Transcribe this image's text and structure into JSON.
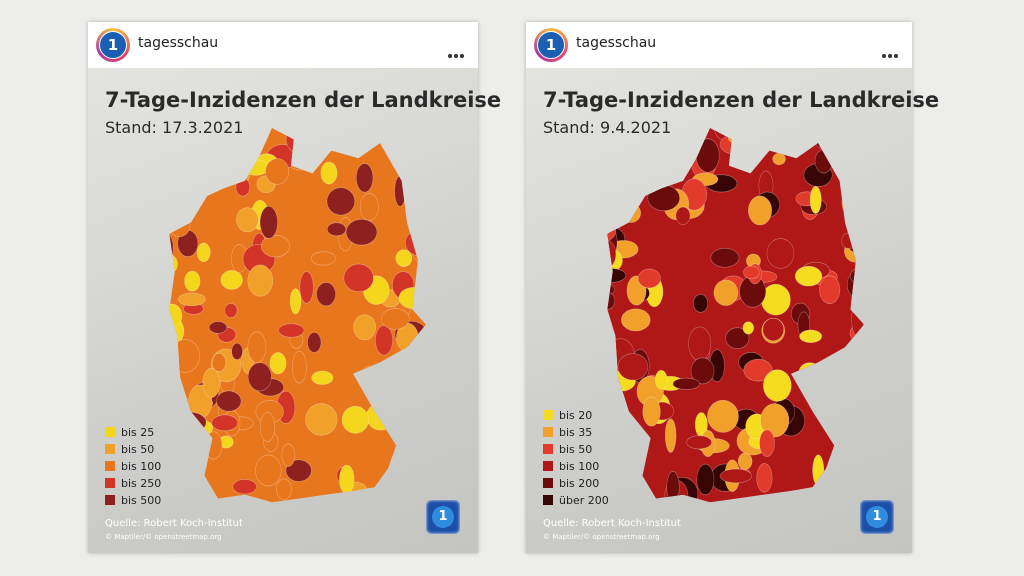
{
  "posts": [
    {
      "account": "tagesschau",
      "title": "7-Tage-Inzidenzen der Landkreise",
      "date": "Stand: 17.3.2021",
      "legend": [
        {
          "label": "bis 25",
          "color": "#f4d61c"
        },
        {
          "label": "bis 50",
          "color": "#f1a12a"
        },
        {
          "label": "bis 100",
          "color": "#e8761d"
        },
        {
          "label": "bis 250",
          "color": "#d23427"
        },
        {
          "label": "bis 500",
          "color": "#8e2020"
        }
      ],
      "source": "Quelle: Robert Koch-Institut",
      "attribution": "© Maptiler/© openstreetmap.org"
    },
    {
      "account": "tagesschau",
      "title": "7-Tage-Inzidenzen der Landkreise",
      "date": "Stand: 9.4.2021",
      "legend": [
        {
          "label": "bis 20",
          "color": "#f5dc1e"
        },
        {
          "label": "bis 35",
          "color": "#f1a12a"
        },
        {
          "label": "bis 50",
          "color": "#e23b2b"
        },
        {
          "label": "bis 100",
          "color": "#b01717"
        },
        {
          "label": "bis 200",
          "color": "#6b0b0b"
        },
        {
          "label": "über 200",
          "color": "#380505"
        }
      ],
      "source": "Quelle: Robert Koch-Institut",
      "attribution": "© Maptiler/© openstreetmap.org"
    }
  ]
}
